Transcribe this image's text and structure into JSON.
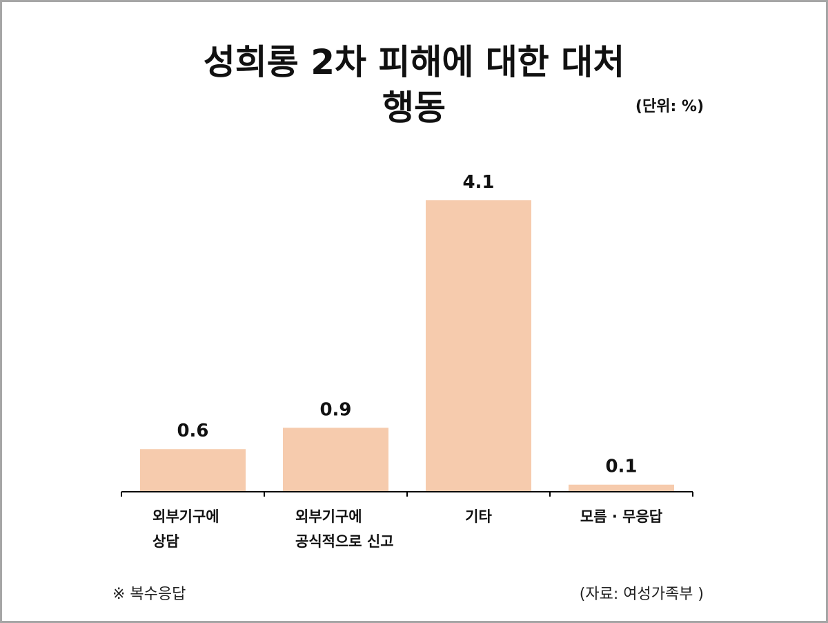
{
  "title_line1": "성희롱 2차 피해에 대한 대처",
  "title_line2": "행동",
  "unit": "(단위: %)",
  "footnote": "※ 복수응답",
  "source": "(자료: 여성가족부 )",
  "colors": {
    "bar": "#f6cbad",
    "axis": "#000000",
    "frame": "#a6a6a6"
  },
  "chart_data": {
    "type": "bar",
    "categories": [
      [
        "외부기구에",
        "상담"
      ],
      [
        "외부기구에",
        "공식적으로 신고"
      ],
      [
        "기타"
      ],
      [
        "모름 · 무응답"
      ]
    ],
    "values": [
      0.6,
      0.9,
      4.1,
      0.1
    ],
    "value_labels": [
      "0.6",
      "0.9",
      "4.1",
      "0.1"
    ],
    "ylim": [
      0,
      4.5
    ],
    "grid": false,
    "legend": "none"
  }
}
